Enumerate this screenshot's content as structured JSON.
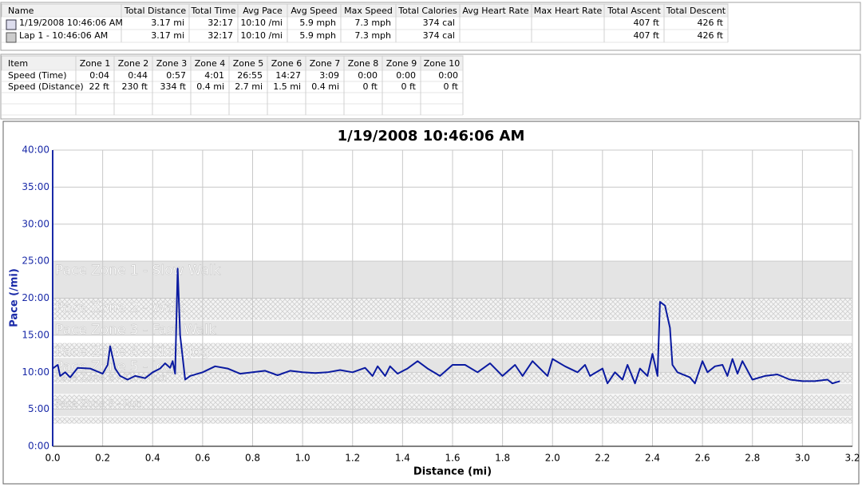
{
  "summary_table": {
    "headers": [
      "Name",
      "Total Distance",
      "Total Time",
      "Avg Pace",
      "Avg Speed",
      "Max Speed",
      "Total Calories",
      "Avg Heart Rate",
      "Max Heart Rate",
      "Total Ascent",
      "Total Descent"
    ],
    "rows": [
      [
        "1/19/2008 10:46:06 AM",
        "3.17 mi",
        "32:17",
        "10:10 /mi",
        "5.9 mph",
        "7.3 mph",
        "374 cal",
        null,
        null,
        "407 ft",
        "426 ft"
      ],
      [
        "Lap 1 - 10:46:06 AM",
        "3.17 mi",
        "32:17",
        "10:10 /mi",
        "5.9 mph",
        "7.3 mph",
        "374 cal",
        null,
        null,
        "407 ft",
        "426 ft"
      ]
    ]
  },
  "zones_table": {
    "headers": [
      "Item",
      "Zone 1",
      "Zone 2",
      "Zone 3",
      "Zone 4",
      "Zone 5",
      "Zone 6",
      "Zone 7",
      "Zone 8",
      "Zone 9",
      "Zone 10"
    ],
    "rows": [
      [
        "Speed (Time)",
        "0:04",
        "0:44",
        "0:57",
        "4:01",
        "26:55",
        "14:27",
        "3:09",
        "0:00",
        "0:00",
        "0:00"
      ],
      [
        "Speed (Distance)",
        "22 ft",
        "230 ft",
        "334 ft",
        "0.4 mi",
        "2.7 mi",
        "1.5 mi",
        "0.4 mi",
        "0 ft",
        "0 ft",
        "0 ft"
      ]
    ]
  },
  "chart_data": {
    "type": "line",
    "title": "1/19/2008 10:46:06 AM",
    "x_label": "Distance (mi)",
    "y_label": "Pace (/mi)",
    "color": "#0a1aa0",
    "grid": true,
    "xlim": [
      0,
      3.2
    ],
    "ylim": [
      0,
      40
    ],
    "xticks": [
      {
        "value": 0,
        "label": "0.0"
      },
      0.2,
      0.4,
      0.6,
      0.8,
      {
        "value": 1,
        "label": "1.0"
      },
      1.2,
      1.4,
      1.6,
      1.8,
      {
        "value": 2,
        "label": "2.0"
      },
      2.2,
      2.4,
      2.6,
      2.8,
      {
        "value": 3,
        "label": "3.0"
      },
      3.2
    ],
    "yticks": [
      {
        "value": 0,
        "label": "0:00"
      },
      {
        "value": 5,
        "label": "5:00"
      },
      {
        "value": 10,
        "label": "10:00"
      },
      {
        "value": 15,
        "label": "15:00"
      },
      {
        "value": 20,
        "label": "20:00"
      },
      {
        "value": 25,
        "label": "25:00"
      },
      {
        "value": 30,
        "label": "30:00"
      },
      {
        "value": 35,
        "label": "35:00"
      },
      {
        "value": 40,
        "label": "40:00"
      }
    ],
    "zones": [
      {
        "label": "Pace Zone 1 - Slow Walk",
        "from": 20,
        "to": 25
      },
      {
        "label": "Pace Zone 2 - Walk",
        "from": 17,
        "to": 20
      },
      {
        "label": "Pace Zone 3 - Fast Walk",
        "from": 15,
        "to": 17
      },
      {
        "label": "Pace Zone 4 - Slow Jog",
        "from": 12,
        "to": 14
      },
      {
        "label": "Pace Zone 5 - Jog",
        "from": 10,
        "to": 12
      },
      {
        "label": "Pace Zone 6 - Slow Run",
        "from": 8.5,
        "to": 10
      },
      {
        "label": null,
        "from": 7,
        "to": 8.5
      },
      {
        "label": "Pace Zone 8 - Run",
        "from": 5,
        "to": 7
      },
      {
        "label": null,
        "from": 4,
        "to": 5
      },
      {
        "label": null,
        "from": 3,
        "to": 4
      }
    ],
    "x": [
      0,
      0.02,
      0.03,
      0.05,
      0.07,
      0.1,
      0.15,
      0.2,
      0.22,
      0.23,
      0.25,
      0.27,
      0.3,
      0.33,
      0.37,
      0.4,
      0.43,
      0.45,
      0.47,
      0.48,
      0.49,
      0.5,
      0.51,
      0.53,
      0.55,
      0.6,
      0.65,
      0.7,
      0.75,
      0.8,
      0.85,
      0.9,
      0.95,
      1,
      1.05,
      1.1,
      1.15,
      1.2,
      1.25,
      1.28,
      1.3,
      1.33,
      1.35,
      1.38,
      1.42,
      1.46,
      1.5,
      1.55,
      1.6,
      1.65,
      1.7,
      1.75,
      1.8,
      1.85,
      1.88,
      1.92,
      1.98,
      2,
      2.05,
      2.1,
      2.13,
      2.15,
      2.2,
      2.22,
      2.25,
      2.28,
      2.3,
      2.33,
      2.35,
      2.38,
      2.4,
      2.42,
      2.43,
      2.45,
      2.47,
      2.48,
      2.5,
      2.55,
      2.57,
      2.6,
      2.62,
      2.65,
      2.68,
      2.7,
      2.72,
      2.74,
      2.76,
      2.8,
      2.85,
      2.9,
      2.95,
      3,
      3.05,
      3.1,
      3.12,
      3.15
    ],
    "values": [
      10.5,
      11,
      9.5,
      10,
      9.3,
      10.6,
      10.5,
      9.8,
      11,
      13.5,
      10.5,
      9.5,
      9,
      9.5,
      9.2,
      10,
      10.5,
      11.2,
      10.6,
      11.5,
      9.8,
      24,
      15,
      9,
      9.5,
      10,
      10.8,
      10.5,
      9.8,
      10,
      10.2,
      9.6,
      10.2,
      10,
      9.9,
      10,
      10.3,
      10,
      10.6,
      9.5,
      10.8,
      9.5,
      10.8,
      9.8,
      10.5,
      11.5,
      10.5,
      9.5,
      11,
      11,
      10,
      11.2,
      9.5,
      11,
      9.5,
      11.5,
      9.5,
      11.8,
      10.8,
      10,
      11,
      9.5,
      10.5,
      8.5,
      10,
      9,
      11,
      8.5,
      10.5,
      9.5,
      12.5,
      9.5,
      19.5,
      19,
      16,
      11,
      10,
      9.3,
      8.5,
      11.5,
      10,
      10.8,
      11,
      9.5,
      11.8,
      9.8,
      11.5,
      9,
      9.5,
      9.7,
      9,
      8.8,
      8.8,
      9,
      8.5,
      8.8
    ]
  }
}
